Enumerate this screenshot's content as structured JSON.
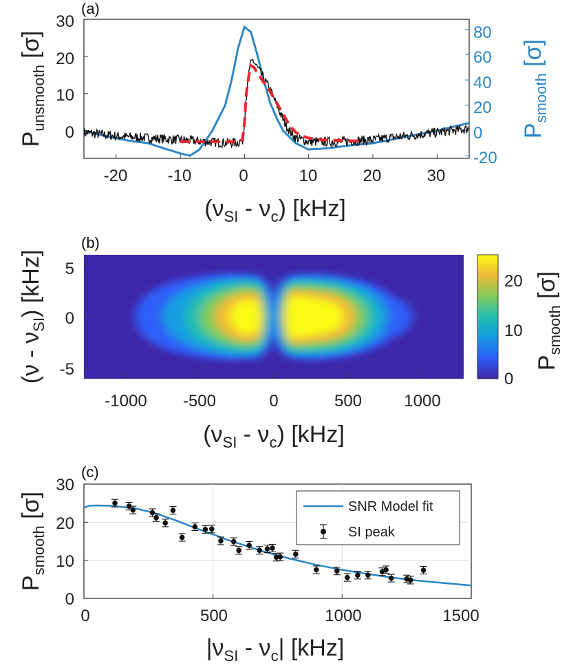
{
  "chart_data": [
    {
      "panel_label": "(a)",
      "type": "line",
      "xlabel_parts": [
        "(ν",
        "SI",
        " - ν",
        "c",
        ") [kHz]"
      ],
      "ylabel_left_parts": [
        "P",
        "unsmooth",
        " [σ]"
      ],
      "ylabel_right_parts": [
        "P",
        "smooth",
        " [σ]"
      ],
      "xlim": [
        -25,
        35
      ],
      "ylim_left": [
        -7.5,
        30
      ],
      "ylim_right": [
        -22,
        88
      ],
      "xticks": [
        "-20",
        "-10",
        "0",
        "10",
        "20",
        "30"
      ],
      "yticks_left": [
        "0",
        "10",
        "20",
        "30"
      ],
      "yticks_right": [
        "-20",
        "0",
        "20",
        "40",
        "60",
        "80"
      ],
      "colors": {
        "unsmooth": "#111111",
        "smooth": "#2d86c4",
        "fit": "#e8262b"
      },
      "series": [
        {
          "name": "P unsmooth",
          "axis": "left",
          "color": "#111111",
          "note": "noisy trace around -2 sigma with a step at 0 kHz to about 19 sigma and a decay back by 8 kHz",
          "x": [
            -25,
            -20,
            -15,
            -10,
            -6,
            -3,
            -1,
            -0.2,
            0.2,
            0.8,
            1.3,
            2,
            3,
            4,
            5,
            6,
            7,
            8,
            10,
            15,
            20,
            25,
            30,
            35
          ],
          "y": [
            -0.5,
            -1.5,
            -2,
            -2.5,
            -3,
            -3.3,
            -3.2,
            -2.5,
            8,
            17,
            19,
            17,
            14,
            11,
            7,
            3,
            0,
            -2,
            -3,
            -3,
            -2.5,
            -1.5,
            -0.5,
            0.5
          ]
        },
        {
          "name": "model fit",
          "axis": "left",
          "color": "#e8262b",
          "style": "dashed",
          "x": [
            -10,
            -4,
            -1,
            -0.3,
            0,
            0.3,
            0.7,
            1,
            1.5,
            2,
            3,
            4,
            5,
            6,
            7,
            8,
            9,
            10,
            12,
            15,
            18
          ],
          "y": [
            -3,
            -3,
            -3,
            -2.5,
            2,
            10,
            15,
            17.5,
            17,
            15.5,
            13,
            10.5,
            7.5,
            4.5,
            1.5,
            -0.5,
            -1.5,
            -2,
            -2.5,
            -2.7,
            -2.8
          ]
        },
        {
          "name": "P smooth",
          "axis": "right",
          "color": "#2d86c4",
          "x": [
            -25,
            -22,
            -18,
            -15,
            -12,
            -10,
            -8.5,
            -7,
            -5,
            -3,
            -2,
            -1,
            0,
            1,
            2,
            3,
            4,
            5,
            6,
            8,
            10,
            13,
            16,
            20,
            25,
            30,
            35
          ],
          "y": [
            0,
            -4,
            -8,
            -10,
            -15,
            -18,
            -20,
            -15,
            0,
            20,
            40,
            65,
            82,
            78,
            60,
            40,
            22,
            10,
            0,
            -10,
            -15,
            -14,
            -12,
            -10,
            -5,
            0,
            6
          ]
        }
      ]
    },
    {
      "panel_label": "(b)",
      "type": "heatmap",
      "xlabel_parts": [
        "(ν",
        "SI",
        " - ν",
        "c",
        ") [kHz]"
      ],
      "ylabel_parts": [
        "(ν - ν",
        "SI",
        ") [kHz]"
      ],
      "colorbar_label_parts": [
        "P",
        "smooth",
        " [σ]"
      ],
      "xlim": [
        -1280,
        1280
      ],
      "ylim": [
        -6,
        6
      ],
      "xticks": [
        "-1000",
        "-500",
        "0",
        "500",
        "1000"
      ],
      "yticks": [
        "-5",
        "0",
        "5"
      ],
      "clim": [
        0,
        25
      ],
      "colorbar_ticks": [
        "0",
        "10",
        "20"
      ],
      "colormap": [
        "#3e26a8",
        "#2d5ef8",
        "#169de0",
        "#23bfb0",
        "#7fca5c",
        "#f2bb36",
        "#f9fb14"
      ],
      "x": [
        -1280,
        -1000,
        -800,
        -600,
        -500,
        -400,
        -300,
        -200,
        -100,
        -50,
        0,
        50,
        100,
        150,
        200,
        300,
        400,
        500,
        600,
        700,
        800,
        1000,
        1280
      ],
      "peak": [
        1,
        2,
        5,
        9,
        12,
        15,
        18,
        21,
        20,
        11,
        4,
        12,
        22,
        23,
        22,
        21,
        20,
        17,
        13,
        9,
        5,
        2,
        1
      ],
      "widths": [
        3.5,
        3.8,
        4.2,
        4.5,
        4.5,
        4.6,
        4.6,
        4.5,
        4.4,
        4,
        3.5,
        4,
        4.3,
        4.4,
        4.5,
        4.5,
        4.4,
        4.2,
        4,
        3.6,
        3.2,
        3,
        2.5
      ]
    },
    {
      "panel_label": "(c)",
      "type": "scatter",
      "xlabel_parts": [
        "|ν",
        "SI",
        " - ν",
        "c",
        "| [kHz]"
      ],
      "ylabel_parts": [
        "P",
        "smooth",
        " [σ]"
      ],
      "xlim": [
        0,
        1500
      ],
      "ylim": [
        0,
        30
      ],
      "xticks": [
        "0",
        "500",
        "1000",
        "1500"
      ],
      "yticks": [
        "0",
        "10",
        "20",
        "30"
      ],
      "grid": true,
      "legend": {
        "position": "top-right",
        "entries": [
          "SNR Model fit",
          "SI peak"
        ]
      },
      "fit_series": {
        "name": "SNR Model fit",
        "color": "#2d86c4",
        "x": [
          0,
          20,
          50,
          100,
          150,
          200,
          250,
          300,
          350,
          400,
          450,
          500,
          550,
          600,
          700,
          800,
          900,
          1000,
          1100,
          1200,
          1300,
          1400,
          1500
        ],
        "y": [
          23.8,
          24.3,
          24.4,
          24.3,
          24,
          23.6,
          22.8,
          21.8,
          20.6,
          19.3,
          18,
          16.8,
          15.5,
          14.4,
          12.2,
          10.4,
          8.8,
          7.5,
          6.4,
          5.4,
          4.6,
          4,
          3.4
        ]
      },
      "peaks": {
        "name": "SI peak",
        "color": "#111111",
        "x": [
          120,
          175,
          190,
          265,
          280,
          315,
          345,
          380,
          430,
          470,
          495,
          530,
          580,
          600,
          640,
          680,
          710,
          730,
          745,
          760,
          820,
          900,
          980,
          1020,
          1060,
          1100,
          1155,
          1170,
          1190,
          1250,
          1265,
          1315
        ],
        "y": [
          25,
          24.2,
          23.2,
          22.5,
          21.2,
          19.8,
          23.1,
          16,
          18.8,
          18.1,
          18.2,
          15.1,
          14.9,
          12.6,
          13.9,
          12.6,
          13,
          13.2,
          10.8,
          10.9,
          11.6,
          7.5,
          7.2,
          5.5,
          6.1,
          6.1,
          7,
          7.5,
          5.3,
          5.1,
          4.8,
          7.4
        ],
        "err": [
          1,
          1,
          1,
          1,
          1,
          1,
          1,
          1,
          1,
          1,
          1,
          1,
          1,
          1,
          1,
          1,
          1,
          1,
          1,
          1,
          1,
          1,
          1,
          1,
          1,
          1,
          1,
          1,
          1,
          1,
          1,
          1
        ]
      }
    }
  ]
}
